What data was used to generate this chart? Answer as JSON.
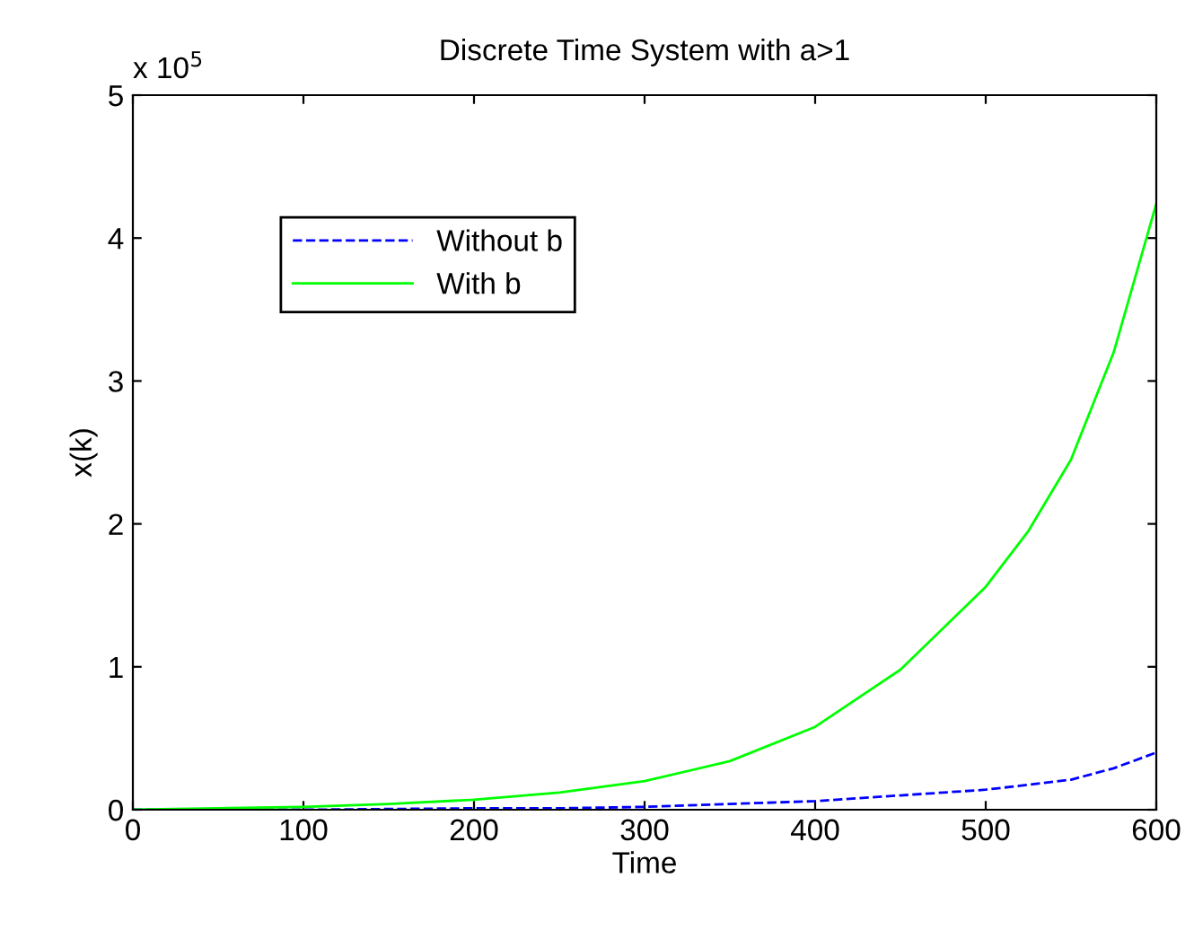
{
  "chart_data": {
    "type": "line",
    "title": "Discrete Time System with a>1",
    "xlabel": "Time",
    "ylabel": "x(k)",
    "annotations": [
      "x 10$^{5}$"
    ],
    "xlim": [
      0,
      600
    ],
    "ylim": [
      0,
      5
    ],
    "xticks": [
      0,
      100,
      200,
      300,
      400,
      500,
      600
    ],
    "yticks": [
      0,
      1,
      2,
      3,
      4,
      5
    ],
    "grid": false,
    "legend": "top left",
    "series": [
      {
        "name": "Without b",
        "color": "#0000ff",
        "line_style": "dashed",
        "x": [
          0,
          100,
          200,
          250,
          300,
          350,
          400,
          450,
          500,
          550,
          575,
          600
        ],
        "values": [
          0,
          0,
          0.01,
          0.01,
          0.02,
          0.04,
          0.06,
          0.1,
          0.14,
          0.21,
          0.29,
          0.4
        ]
      },
      {
        "name": "With b",
        "color": "#00ff00",
        "line_style": "solid",
        "x": [
          0,
          50,
          100,
          150,
          200,
          250,
          300,
          350,
          400,
          450,
          500,
          525,
          550,
          575,
          600
        ],
        "values": [
          0,
          0.01,
          0.02,
          0.04,
          0.07,
          0.12,
          0.2,
          0.34,
          0.58,
          0.98,
          1.56,
          1.95,
          2.45,
          3.2,
          4.24
        ]
      }
    ]
  }
}
